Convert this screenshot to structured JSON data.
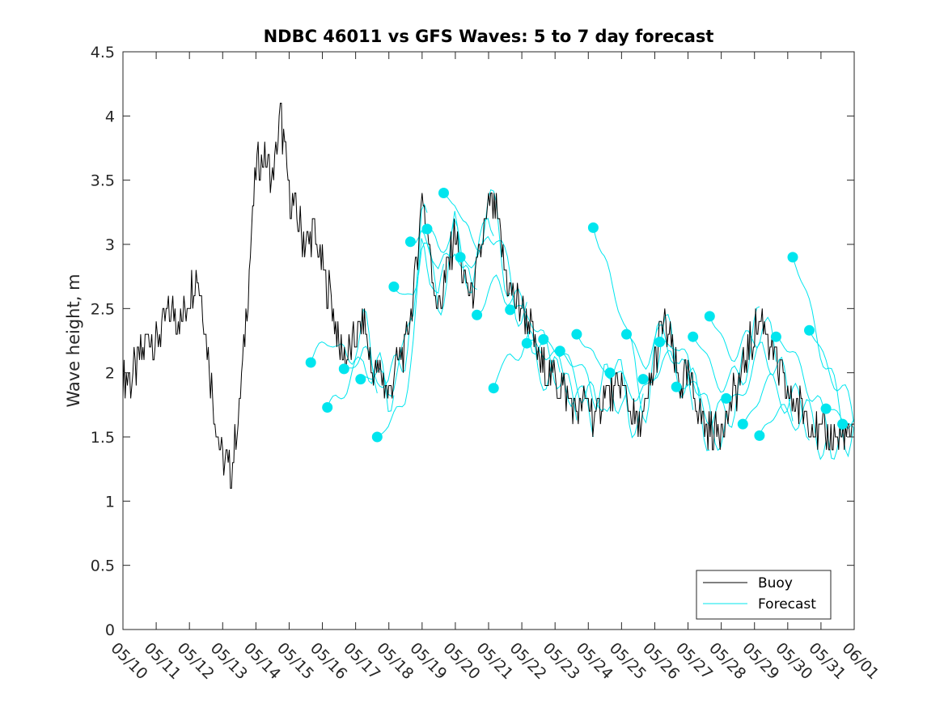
{
  "chart_data": {
    "type": "line",
    "title": "NDBC 46011 vs GFS Waves: 5 to 7 day forecast",
    "xlabel": "",
    "ylabel": "Wave height, m",
    "ylim": [
      0,
      4.5
    ],
    "yticks": [
      0,
      0.5,
      1,
      1.5,
      2,
      2.5,
      3,
      3.5,
      4,
      4.5
    ],
    "ytick_labels": [
      "0",
      "0.5",
      "1",
      "1.5",
      "2",
      "2.5",
      "3",
      "3.5",
      "4",
      "4.5"
    ],
    "xlim": [
      "05/10",
      "06/01"
    ],
    "xtick_labels": [
      "05/10",
      "05/11",
      "05/12",
      "05/13",
      "05/14",
      "05/15",
      "05/16",
      "05/17",
      "05/18",
      "05/19",
      "05/20",
      "05/21",
      "05/22",
      "05/23",
      "05/24",
      "05/25",
      "05/26",
      "05/27",
      "05/28",
      "05/29",
      "05/30",
      "05/31",
      "06/01"
    ],
    "grid": false,
    "legend_position": "bottom-right",
    "series": [
      {
        "name": "Buoy",
        "color": "#000000",
        "x_days_from_0510": [
          0,
          0.25,
          0.5,
          0.75,
          1.0,
          1.25,
          1.5,
          1.75,
          2.0,
          2.25,
          2.5,
          2.75,
          3.0,
          3.25,
          3.5,
          3.75,
          4.0,
          4.25,
          4.5,
          4.75,
          5.0,
          5.25,
          5.5,
          5.75,
          6.0,
          6.25,
          6.5,
          6.75,
          7.0,
          7.25,
          7.5,
          7.75,
          8.0,
          8.25,
          8.5,
          8.75,
          9.0,
          9.25,
          9.5,
          9.75,
          10.0,
          10.25,
          10.5,
          10.75,
          11.0,
          11.25,
          11.5,
          11.75,
          12.0,
          12.25,
          12.5,
          12.75,
          13.0,
          13.25,
          13.5,
          13.75,
          14.0,
          14.25,
          14.5,
          14.75,
          15.0,
          15.25,
          15.5,
          15.75,
          16.0,
          16.25,
          16.5,
          16.75,
          17.0,
          17.25,
          17.5,
          17.75,
          18.0,
          18.25,
          18.5,
          18.75,
          19.0,
          19.25,
          19.5,
          19.75,
          20.0,
          20.25,
          20.5,
          20.75,
          21.0,
          21.25,
          21.5,
          21.75,
          22.0
        ],
        "values": [
          2.0,
          1.95,
          2.1,
          2.3,
          2.2,
          2.4,
          2.5,
          2.4,
          2.6,
          2.8,
          2.3,
          1.7,
          1.3,
          1.25,
          1.7,
          2.6,
          3.6,
          3.7,
          3.5,
          4.0,
          3.4,
          3.2,
          3.0,
          3.1,
          2.8,
          2.6,
          2.2,
          2.1,
          2.3,
          2.4,
          2.0,
          2.0,
          1.8,
          2.1,
          2.2,
          2.6,
          3.4,
          2.9,
          2.5,
          2.8,
          3.1,
          2.7,
          2.6,
          2.9,
          3.3,
          3.2,
          2.8,
          2.6,
          2.5,
          2.4,
          2.1,
          2.0,
          1.95,
          1.9,
          1.75,
          1.7,
          1.8,
          1.6,
          1.9,
          1.8,
          1.9,
          1.7,
          1.6,
          1.7,
          2.1,
          2.4,
          2.2,
          1.9,
          2.0,
          1.8,
          1.6,
          1.5,
          1.6,
          1.7,
          1.9,
          2.1,
          2.3,
          2.4,
          2.2,
          2.0,
          1.8,
          1.75,
          1.7,
          1.6,
          1.5,
          1.5,
          1.5,
          1.5,
          1.5
        ]
      },
      {
        "name": "Forecast",
        "color": "#00e5ee",
        "markers_days_from_0510": [
          5.65,
          6.15,
          6.65,
          7.15,
          7.65,
          8.15,
          8.65,
          9.15,
          9.65,
          10.15,
          10.65,
          11.15,
          11.65,
          12.15,
          12.65,
          13.15,
          13.65,
          14.15,
          14.65,
          15.15,
          15.65,
          16.15,
          16.65,
          17.15,
          17.65,
          18.15,
          18.65,
          19.15,
          19.65,
          20.15,
          20.65,
          21.15,
          21.65
        ],
        "markers": [
          2.08,
          1.73,
          2.03,
          1.95,
          1.5,
          2.67,
          3.02,
          3.12,
          3.4,
          2.9,
          2.45,
          1.88,
          2.49,
          2.23,
          2.26,
          2.17,
          2.3,
          3.13,
          2.0,
          2.3,
          1.95,
          2.24,
          1.89,
          2.28,
          2.44,
          1.8,
          1.6,
          1.51,
          2.28,
          2.9,
          2.33,
          1.72,
          1.6
        ]
      }
    ]
  }
}
